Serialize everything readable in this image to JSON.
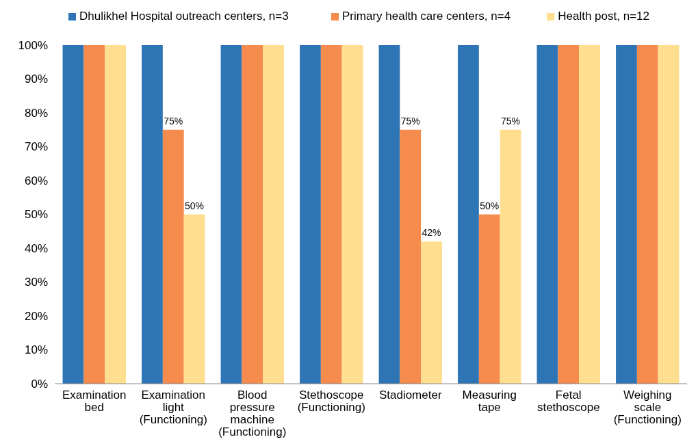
{
  "chart_data": {
    "type": "bar",
    "categories": [
      "Examination bed",
      "Examination light (Functioning)",
      "Blood pressure machine (Functioning)",
      "Stethoscope (Functioning)",
      "Stadiometer",
      "Measuring tape",
      "Fetal stethoscope",
      "Weighing scale (Functioning)"
    ],
    "series": [
      {
        "name": "Dhulikhel Hospital outreach centers, n=3",
        "color": "#2e75b6",
        "values": [
          100,
          100,
          100,
          100,
          100,
          100,
          100,
          100
        ]
      },
      {
        "name": "Primary health care centers, n=4",
        "color": "#f58b4c",
        "values": [
          100,
          75,
          100,
          100,
          75,
          50,
          100,
          100
        ],
        "value_labels": [
          null,
          "75%",
          null,
          null,
          "75%",
          "50%",
          null,
          null
        ]
      },
      {
        "name": "Health post, n=12",
        "color": "#ffdf8f",
        "values": [
          100,
          50,
          100,
          100,
          42,
          75,
          100,
          100
        ],
        "value_labels": [
          null,
          "50%",
          null,
          null,
          "42%",
          "75%",
          null,
          null
        ]
      }
    ],
    "ylim": [
      0,
      100
    ],
    "yticks": [
      {
        "value": 0,
        "label": "0%"
      },
      {
        "value": 10,
        "label": "10%"
      },
      {
        "value": 20,
        "label": "20%"
      },
      {
        "value": 30,
        "label": "30%"
      },
      {
        "value": 40,
        "label": "40%"
      },
      {
        "value": 50,
        "label": "50%"
      },
      {
        "value": 60,
        "label": "60%"
      },
      {
        "value": 70,
        "label": "70%"
      },
      {
        "value": 80,
        "label": "80%"
      },
      {
        "value": 90,
        "label": "90%"
      },
      {
        "value": 100,
        "label": "100%"
      }
    ],
    "grid": false,
    "legend": "top"
  }
}
